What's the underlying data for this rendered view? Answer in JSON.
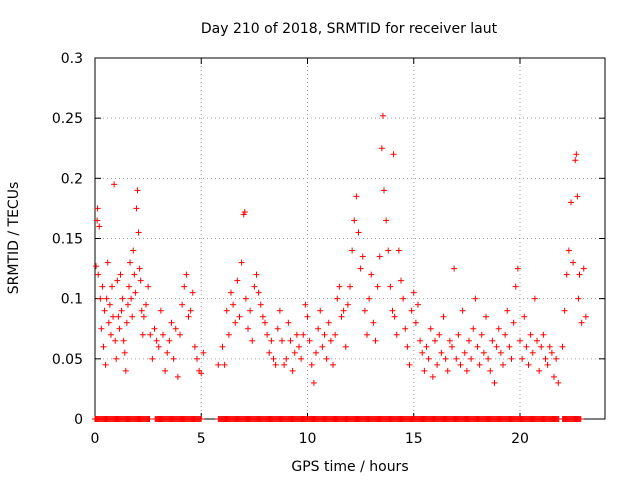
{
  "chart_data": {
    "type": "scatter",
    "title": "Day 210 of 2018, SRMTID for receiver laut",
    "xlabel": "GPS time / hours",
    "ylabel": "SRMTID / TECUs",
    "xlim": [
      0,
      24
    ],
    "ylim": [
      0,
      0.3
    ],
    "xticks": [
      0,
      5,
      10,
      15,
      20
    ],
    "yticks": [
      0,
      0.05,
      0.1,
      0.15,
      0.2,
      0.25,
      0.3
    ],
    "ytick_labels": [
      "0",
      "0.05",
      "0.1",
      "0.15",
      "0.2",
      "0.25",
      "0.3"
    ],
    "xtick_labels": [
      "0",
      "5",
      "10",
      "15",
      "20"
    ],
    "grid": true,
    "marker": "+",
    "series": [
      {
        "name": "SRMTID",
        "color": "#ff0000",
        "points": [
          [
            0.05,
            0.127
          ],
          [
            0.1,
            0.165
          ],
          [
            0.12,
            0.175
          ],
          [
            0.15,
            0.12
          ],
          [
            0.2,
            0.16
          ],
          [
            0.25,
            0.1
          ],
          [
            0.3,
            0.075
          ],
          [
            0.35,
            0.11
          ],
          [
            0.4,
            0.06
          ],
          [
            0.45,
            0.09
          ],
          [
            0.5,
            0.045
          ],
          [
            0.55,
            0.1
          ],
          [
            0.6,
            0.13
          ],
          [
            0.65,
            0.08
          ],
          [
            0.7,
            0.095
          ],
          [
            0.75,
            0.07
          ],
          [
            0.8,
            0.11
          ],
          [
            0.85,
            0.085
          ],
          [
            0.9,
            0.195
          ],
          [
            0.95,
            0.065
          ],
          [
            1.0,
            0.05
          ],
          [
            1.05,
            0.115
          ],
          [
            1.1,
            0.085
          ],
          [
            1.15,
            0.075
          ],
          [
            1.2,
            0.12
          ],
          [
            1.25,
            0.09
          ],
          [
            1.3,
            0.1
          ],
          [
            1.35,
            0.065
          ],
          [
            1.4,
            0.055
          ],
          [
            1.45,
            0.04
          ],
          [
            1.5,
            0.08
          ],
          [
            1.55,
            0.095
          ],
          [
            1.6,
            0.11
          ],
          [
            1.65,
            0.13
          ],
          [
            1.7,
            0.1
          ],
          [
            1.75,
            0.085
          ],
          [
            1.8,
            0.14
          ],
          [
            1.85,
            0.12
          ],
          [
            1.9,
            0.105
          ],
          [
            1.95,
            0.175
          ],
          [
            2.0,
            0.19
          ],
          [
            2.05,
            0.155
          ],
          [
            2.1,
            0.125
          ],
          [
            2.15,
            0.115
          ],
          [
            2.2,
            0.09
          ],
          [
            2.25,
            0.07
          ],
          [
            2.3,
            0.085
          ],
          [
            2.4,
            0.095
          ],
          [
            2.5,
            0.11
          ],
          [
            2.6,
            0.07
          ],
          [
            2.7,
            0.05
          ],
          [
            2.8,
            0.075
          ],
          [
            2.9,
            0.065
          ],
          [
            3.0,
            0.06
          ],
          [
            3.1,
            0.09
          ],
          [
            3.2,
            0.07
          ],
          [
            3.3,
            0.04
          ],
          [
            3.4,
            0.055
          ],
          [
            3.5,
            0.065
          ],
          [
            3.6,
            0.08
          ],
          [
            3.7,
            0.05
          ],
          [
            3.8,
            0.075
          ],
          [
            3.9,
            0.035
          ],
          [
            4.0,
            0.07
          ],
          [
            4.1,
            0.095
          ],
          [
            4.2,
            0.11
          ],
          [
            4.3,
            0.12
          ],
          [
            4.4,
            0.085
          ],
          [
            4.5,
            0.09
          ],
          [
            4.6,
            0.105
          ],
          [
            4.7,
            0.06
          ],
          [
            4.8,
            0.05
          ],
          [
            4.9,
            0.04
          ],
          [
            5.0,
            0.038
          ],
          [
            5.1,
            0.055
          ],
          [
            5.8,
            0.045
          ],
          [
            6.0,
            0.06
          ],
          [
            6.1,
            0.045
          ],
          [
            6.2,
            0.09
          ],
          [
            6.3,
            0.07
          ],
          [
            6.4,
            0.105
          ],
          [
            6.5,
            0.095
          ],
          [
            6.6,
            0.08
          ],
          [
            6.7,
            0.115
          ],
          [
            6.8,
            0.085
          ],
          [
            6.9,
            0.13
          ],
          [
            7.0,
            0.17
          ],
          [
            7.05,
            0.172
          ],
          [
            7.1,
            0.1
          ],
          [
            7.2,
            0.075
          ],
          [
            7.3,
            0.09
          ],
          [
            7.4,
            0.065
          ],
          [
            7.5,
            0.11
          ],
          [
            7.6,
            0.12
          ],
          [
            7.7,
            0.105
          ],
          [
            7.8,
            0.095
          ],
          [
            7.9,
            0.085
          ],
          [
            8.0,
            0.08
          ],
          [
            8.1,
            0.07
          ],
          [
            8.2,
            0.055
          ],
          [
            8.3,
            0.065
          ],
          [
            8.4,
            0.05
          ],
          [
            8.5,
            0.045
          ],
          [
            8.6,
            0.075
          ],
          [
            8.7,
            0.09
          ],
          [
            8.8,
            0.065
          ],
          [
            8.9,
            0.045
          ],
          [
            9.0,
            0.05
          ],
          [
            9.1,
            0.08
          ],
          [
            9.2,
            0.065
          ],
          [
            9.3,
            0.04
          ],
          [
            9.4,
            0.055
          ],
          [
            9.5,
            0.07
          ],
          [
            9.6,
            0.06
          ],
          [
            9.7,
            0.05
          ],
          [
            9.8,
            0.07
          ],
          [
            9.9,
            0.095
          ],
          [
            10.0,
            0.085
          ],
          [
            10.1,
            0.065
          ],
          [
            10.2,
            0.045
          ],
          [
            10.3,
            0.03
          ],
          [
            10.4,
            0.055
          ],
          [
            10.5,
            0.075
          ],
          [
            10.6,
            0.09
          ],
          [
            10.7,
            0.06
          ],
          [
            10.8,
            0.07
          ],
          [
            10.9,
            0.05
          ],
          [
            11.0,
            0.08
          ],
          [
            11.1,
            0.065
          ],
          [
            11.2,
            0.045
          ],
          [
            11.3,
            0.07
          ],
          [
            11.4,
            0.1
          ],
          [
            11.5,
            0.11
          ],
          [
            11.6,
            0.085
          ],
          [
            11.7,
            0.09
          ],
          [
            11.8,
            0.06
          ],
          [
            11.9,
            0.095
          ],
          [
            12.0,
            0.11
          ],
          [
            12.1,
            0.14
          ],
          [
            12.2,
            0.165
          ],
          [
            12.3,
            0.185
          ],
          [
            12.4,
            0.155
          ],
          [
            12.5,
            0.125
          ],
          [
            12.6,
            0.135
          ],
          [
            12.7,
            0.09
          ],
          [
            12.8,
            0.07
          ],
          [
            12.9,
            0.1
          ],
          [
            13.0,
            0.12
          ],
          [
            13.1,
            0.08
          ],
          [
            13.2,
            0.065
          ],
          [
            13.3,
            0.11
          ],
          [
            13.4,
            0.135
          ],
          [
            13.5,
            0.225
          ],
          [
            13.55,
            0.252
          ],
          [
            13.6,
            0.19
          ],
          [
            13.7,
            0.165
          ],
          [
            13.8,
            0.14
          ],
          [
            13.9,
            0.11
          ],
          [
            14.0,
            0.09
          ],
          [
            14.05,
            0.22
          ],
          [
            14.1,
            0.085
          ],
          [
            14.2,
            0.07
          ],
          [
            14.3,
            0.14
          ],
          [
            14.4,
            0.115
          ],
          [
            14.5,
            0.1
          ],
          [
            14.6,
            0.075
          ],
          [
            14.7,
            0.06
          ],
          [
            14.8,
            0.045
          ],
          [
            14.9,
            0.09
          ],
          [
            15.0,
            0.105
          ],
          [
            15.1,
            0.08
          ],
          [
            15.2,
            0.095
          ],
          [
            15.3,
            0.065
          ],
          [
            15.4,
            0.055
          ],
          [
            15.5,
            0.04
          ],
          [
            15.6,
            0.06
          ],
          [
            15.7,
            0.05
          ],
          [
            15.8,
            0.075
          ],
          [
            15.9,
            0.035
          ],
          [
            16.0,
            0.065
          ],
          [
            16.1,
            0.045
          ],
          [
            16.2,
            0.07
          ],
          [
            16.3,
            0.055
          ],
          [
            16.4,
            0.085
          ],
          [
            16.5,
            0.05
          ],
          [
            16.6,
            0.04
          ],
          [
            16.7,
            0.065
          ],
          [
            16.8,
            0.06
          ],
          [
            16.9,
            0.125
          ],
          [
            17.0,
            0.05
          ],
          [
            17.1,
            0.07
          ],
          [
            17.2,
            0.045
          ],
          [
            17.3,
            0.09
          ],
          [
            17.4,
            0.055
          ],
          [
            17.5,
            0.04
          ],
          [
            17.6,
            0.065
          ],
          [
            17.7,
            0.05
          ],
          [
            17.8,
            0.075
          ],
          [
            17.9,
            0.1
          ],
          [
            18.0,
            0.06
          ],
          [
            18.1,
            0.045
          ],
          [
            18.2,
            0.07
          ],
          [
            18.3,
            0.055
          ],
          [
            18.4,
            0.085
          ],
          [
            18.5,
            0.05
          ],
          [
            18.6,
            0.04
          ],
          [
            18.7,
            0.065
          ],
          [
            18.8,
            0.03
          ],
          [
            18.9,
            0.06
          ],
          [
            19.0,
            0.075
          ],
          [
            19.1,
            0.055
          ],
          [
            19.2,
            0.045
          ],
          [
            19.3,
            0.07
          ],
          [
            19.4,
            0.09
          ],
          [
            19.5,
            0.06
          ],
          [
            19.6,
            0.05
          ],
          [
            19.7,
            0.08
          ],
          [
            19.8,
            0.11
          ],
          [
            19.9,
            0.125
          ],
          [
            20.0,
            0.065
          ],
          [
            20.1,
            0.05
          ],
          [
            20.2,
            0.085
          ],
          [
            20.3,
            0.06
          ],
          [
            20.4,
            0.045
          ],
          [
            20.5,
            0.07
          ],
          [
            20.6,
            0.055
          ],
          [
            20.7,
            0.1
          ],
          [
            20.8,
            0.065
          ],
          [
            20.9,
            0.04
          ],
          [
            21.0,
            0.06
          ],
          [
            21.1,
            0.07
          ],
          [
            21.2,
            0.05
          ],
          [
            21.3,
            0.045
          ],
          [
            21.4,
            0.06
          ],
          [
            21.5,
            0.055
          ],
          [
            21.6,
            0.035
          ],
          [
            21.7,
            0.05
          ],
          [
            21.8,
            0.03
          ],
          [
            22.0,
            0.06
          ],
          [
            22.1,
            0.09
          ],
          [
            22.2,
            0.12
          ],
          [
            22.3,
            0.14
          ],
          [
            22.4,
            0.18
          ],
          [
            22.5,
            0.13
          ],
          [
            22.6,
            0.215
          ],
          [
            22.65,
            0.22
          ],
          [
            22.7,
            0.185
          ],
          [
            22.75,
            0.1
          ],
          [
            22.8,
            0.12
          ],
          [
            22.9,
            0.08
          ],
          [
            23.0,
            0.125
          ],
          [
            23.1,
            0.085
          ]
        ]
      },
      {
        "name": "zero-baseline",
        "color": "#ff0000",
        "x_start": 0,
        "x_end": 22.9,
        "y": 0,
        "gaps": [
          [
            2.6,
            2.8
          ],
          [
            5.0,
            5.8
          ],
          [
            21.85,
            22.0
          ]
        ]
      }
    ]
  }
}
